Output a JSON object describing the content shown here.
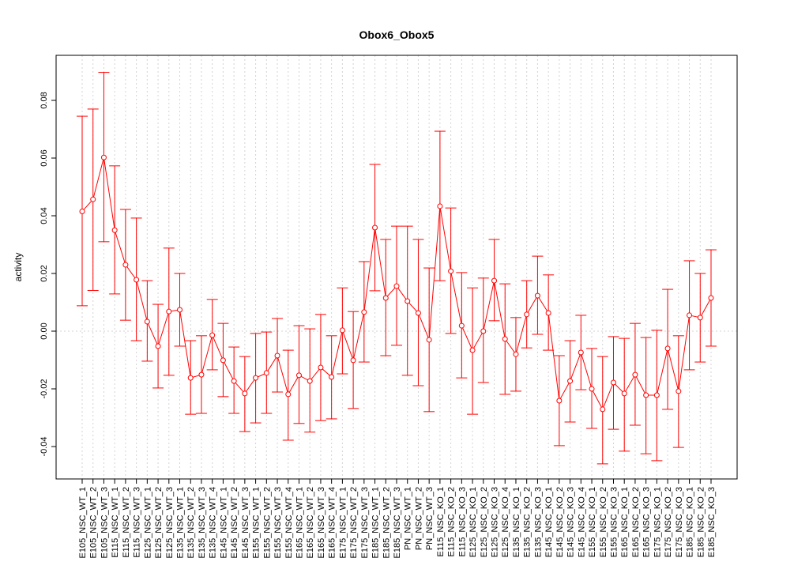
{
  "chart_data": {
    "type": "line",
    "title": "Obox6_Obox5",
    "xlabel": "",
    "ylabel": "activity",
    "ylim": [
      -0.051,
      0.096
    ],
    "yticks": [
      -0.04,
      -0.02,
      0.0,
      0.02,
      0.04,
      0.06,
      0.08
    ],
    "ytick_labels": [
      "-0.04",
      "-0.02",
      "0.00",
      "0.02",
      "0.04",
      "0.06",
      "0.08"
    ],
    "grid": true,
    "color": "#ff0000",
    "categories": [
      "E105_NSC_WT_1",
      "E105_NSC_WT_2",
      "E105_NSC_WT_3",
      "E115_NSC_WT_1",
      "E115_NSC_WT_2",
      "E115_NSC_WT_3",
      "E125_NSC_WT_1",
      "E125_NSC_WT_2",
      "E125_NSC_WT_3",
      "E135_NSC_WT_1",
      "E135_NSC_WT_2",
      "E135_NSC_WT_3",
      "E135_NSC_WT_4",
      "E145_NSC_WT_1",
      "E145_NSC_WT_2",
      "E145_NSC_WT_3",
      "E155_NSC_WT_1",
      "E155_NSC_WT_2",
      "E155_NSC_WT_3",
      "E155_NSC_WT_4",
      "E165_NSC_WT_1",
      "E165_NSC_WT_2",
      "E165_NSC_WT_3",
      "E165_NSC_WT_4",
      "E175_NSC_WT_1",
      "E175_NSC_WT_2",
      "E175_NSC_WT_3",
      "E185_NSC_WT_1",
      "E185_NSC_WT_2",
      "E185_NSC_WT_3",
      "PN_NSC_WT_1",
      "PN_NSC_WT_2",
      "PN_NSC_WT_3",
      "E115_NSC_KO_1",
      "E115_NSC_KO_2",
      "E115_NSC_KO_3",
      "E125_NSC_KO_1",
      "E125_NSC_KO_2",
      "E125_NSC_KO_3",
      "E125_NSC_KO_4",
      "E135_NSC_KO_1",
      "E135_NSC_KO_2",
      "E135_NSC_KO_3",
      "E145_NSC_KO_1",
      "E145_NSC_KO_2",
      "E145_NSC_KO_3",
      "E145_NSC_KO_4",
      "E155_NSC_KO_1",
      "E155_NSC_KO_2",
      "E155_NSC_KO_3",
      "E165_NSC_KO_1",
      "E165_NSC_KO_2",
      "E165_NSC_KO_3",
      "E175_NSC_KO_1",
      "E175_NSC_KO_2",
      "E175_NSC_KO_3",
      "E185_NSC_KO_1",
      "E185_NSC_KO_2",
      "E185_NSC_KO_3"
    ],
    "values": [
      0.0415,
      0.0457,
      0.0602,
      0.035,
      0.023,
      0.0178,
      0.0033,
      -0.0052,
      0.0068,
      0.0074,
      -0.0162,
      -0.0151,
      -0.0014,
      -0.0101,
      -0.0173,
      -0.0216,
      -0.0162,
      -0.0145,
      -0.0085,
      -0.0219,
      -0.0153,
      -0.0173,
      -0.0126,
      -0.0159,
      0.0003,
      -0.0101,
      0.0066,
      0.0359,
      0.0115,
      0.0156,
      0.0104,
      0.0063,
      -0.003,
      0.0433,
      0.0208,
      0.0019,
      -0.0066,
      0.0,
      0.0175,
      -0.0027,
      -0.008,
      0.0058,
      0.0123,
      0.0063,
      -0.0241,
      -0.0173,
      -0.0074,
      -0.02,
      -0.0271,
      -0.0178,
      -0.0216,
      -0.0151,
      -0.0222,
      -0.0222,
      -0.006,
      -0.0208,
      0.0055,
      0.0047,
      0.0115
    ],
    "upper": [
      0.0745,
      0.077,
      0.0897,
      0.0573,
      0.0422,
      0.0392,
      0.0175,
      0.0093,
      0.0288,
      0.02,
      -0.0033,
      -0.0016,
      0.011,
      0.0027,
      -0.0055,
      -0.0088,
      -0.0008,
      -0.0003,
      0.0044,
      -0.0066,
      0.0019,
      0.0008,
      0.0058,
      -0.0016,
      0.015,
      0.0068,
      0.0241,
      0.0578,
      0.0318,
      0.0364,
      0.0364,
      0.0318,
      0.0219,
      0.0693,
      0.0427,
      0.0203,
      0.015,
      0.0184,
      0.0318,
      0.0164,
      0.0047,
      0.0175,
      0.026,
      0.0195,
      -0.0085,
      -0.0033,
      0.0055,
      -0.006,
      -0.0088,
      -0.0019,
      -0.0025,
      0.0027,
      -0.0022,
      0.0003,
      0.0145,
      -0.0016,
      0.0244,
      0.02,
      0.0282
    ],
    "lower": [
      0.0088,
      0.0141,
      0.031,
      0.0129,
      0.0038,
      -0.0033,
      -0.0104,
      -0.0197,
      -0.0153,
      -0.0052,
      -0.0288,
      -0.0285,
      -0.0134,
      -0.0227,
      -0.0285,
      -0.0348,
      -0.0318,
      -0.0285,
      -0.0211,
      -0.0378,
      -0.032,
      -0.035,
      -0.031,
      -0.0304,
      -0.0148,
      -0.0268,
      -0.0107,
      0.014,
      -0.0085,
      -0.0049,
      -0.0153,
      -0.0189,
      -0.0279,
      0.0175,
      -0.0008,
      -0.0162,
      -0.0288,
      -0.0178,
      0.0036,
      -0.0219,
      -0.0208,
      -0.0058,
      -0.0011,
      -0.0066,
      -0.0397,
      -0.0315,
      -0.0203,
      -0.0337,
      -0.046,
      -0.034,
      -0.0416,
      -0.0326,
      -0.0425,
      -0.0449,
      -0.0271,
      -0.0403,
      -0.0134,
      -0.0107,
      -0.0052
    ]
  }
}
